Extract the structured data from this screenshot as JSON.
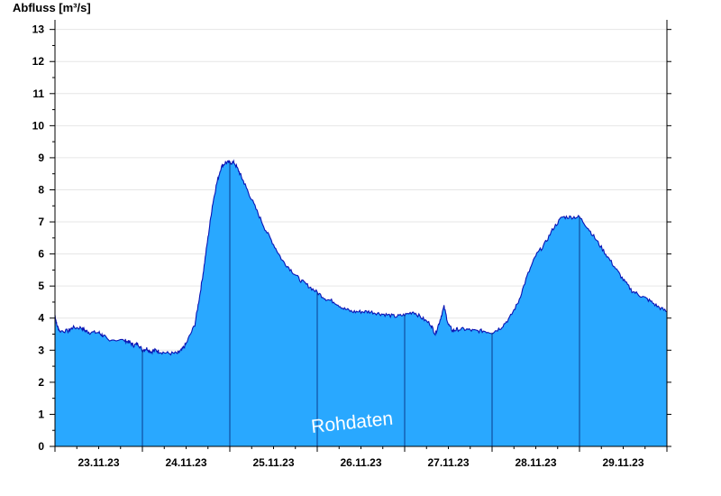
{
  "chart_data": {
    "type": "area",
    "ylabel": "Abfluss [m³/s]",
    "ylim": [
      0,
      13.3
    ],
    "yticks": [
      0,
      1,
      2,
      3,
      4,
      5,
      6,
      7,
      8,
      9,
      10,
      11,
      12,
      13
    ],
    "xlim": [
      0,
      7
    ],
    "day_labels": [
      "23.11.23",
      "24.11.23",
      "25.11.23",
      "26.11.23",
      "27.11.23",
      "28.11.23",
      "29.11.23"
    ],
    "day_boundaries": [
      1,
      2,
      3,
      4,
      5,
      6
    ],
    "watermark": "Rohdaten",
    "grid": true,
    "colors": {
      "fill": "#29a8ff",
      "line": "#0a14b4",
      "grid": "#e6e6e6"
    },
    "series": [
      {
        "x": [
          0,
          0.02,
          0.05,
          0.15,
          0.2,
          0.3,
          0.35,
          0.4,
          0.5,
          0.55,
          0.6,
          0.8,
          0.85,
          0.9,
          0.95,
          1.0,
          1.05,
          1.1,
          1.15,
          1.2,
          1.3,
          1.4,
          1.45,
          1.5,
          1.6,
          1.65,
          1.7,
          1.75,
          1.8,
          1.85,
          1.9,
          1.95,
          2.0,
          2.05,
          2.1,
          2.15,
          2.2,
          2.3,
          2.4,
          2.5,
          2.6,
          2.7,
          2.8,
          2.9,
          3.0,
          3.1,
          3.2,
          3.3,
          3.4,
          3.5,
          3.6,
          3.7,
          3.8,
          3.9,
          4.0,
          4.1,
          4.2,
          4.3,
          4.35,
          4.4,
          4.45,
          4.5,
          4.55,
          4.6,
          4.7,
          4.8,
          4.9,
          5.0,
          5.1,
          5.2,
          5.3,
          5.4,
          5.5,
          5.6,
          5.7,
          5.8,
          5.9,
          6.0,
          6.1,
          6.2,
          6.3,
          6.4,
          6.5,
          6.6,
          6.7,
          6.8,
          6.9,
          7.0
        ],
        "y": [
          4.1,
          3.8,
          3.6,
          3.6,
          3.7,
          3.7,
          3.6,
          3.55,
          3.55,
          3.45,
          3.35,
          3.3,
          3.25,
          3.15,
          3.2,
          3.0,
          3.05,
          2.95,
          3.0,
          2.95,
          2.9,
          2.9,
          3.0,
          3.2,
          3.8,
          4.6,
          5.5,
          6.5,
          7.5,
          8.2,
          8.7,
          8.85,
          8.85,
          8.85,
          8.6,
          8.3,
          8.0,
          7.4,
          6.8,
          6.3,
          5.8,
          5.5,
          5.2,
          5.0,
          4.8,
          4.6,
          4.5,
          4.3,
          4.2,
          4.2,
          4.2,
          4.15,
          4.1,
          4.05,
          4.1,
          4.2,
          4.0,
          3.8,
          3.5,
          3.9,
          4.35,
          3.8,
          3.6,
          3.65,
          3.65,
          3.6,
          3.6,
          3.55,
          3.7,
          4.0,
          4.5,
          5.3,
          5.95,
          6.3,
          6.8,
          7.15,
          7.15,
          7.15,
          6.8,
          6.4,
          6.0,
          5.6,
          5.2,
          4.85,
          4.7,
          4.55,
          4.35,
          4.2
        ]
      }
    ]
  }
}
